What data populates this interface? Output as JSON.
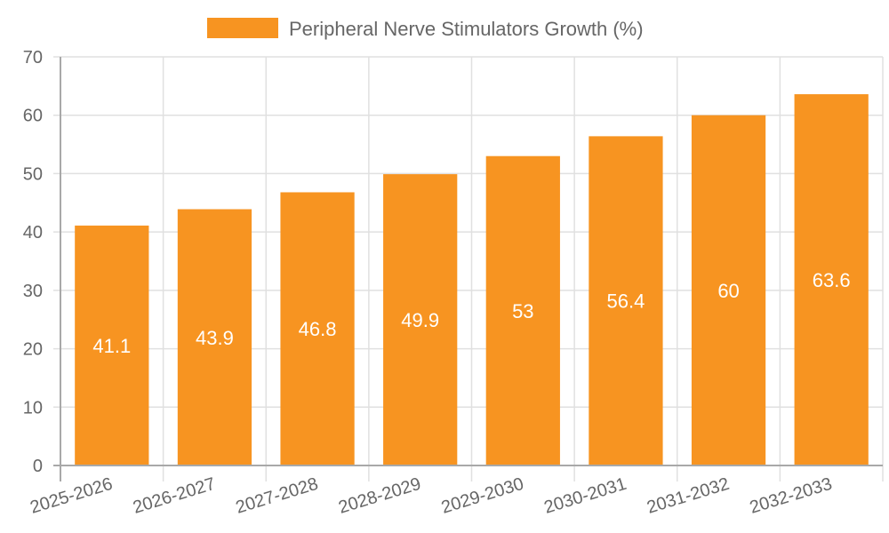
{
  "chart_data": {
    "type": "bar",
    "title": "",
    "xlabel": "",
    "ylabel": "",
    "categories": [
      "2025-2026",
      "2026-2027",
      "2027-2028",
      "2028-2029",
      "2029-2030",
      "2030-2031",
      "2031-2032",
      "2032-2033"
    ],
    "series": [
      {
        "name": "Peripheral Nerve Stimulators Growth (%)",
        "values": [
          41.1,
          43.9,
          46.8,
          49.9,
          53,
          56.4,
          60,
          63.6
        ],
        "color": "#f79421"
      }
    ],
    "ylim": [
      0,
      70
    ],
    "yticks": [
      0,
      10,
      20,
      30,
      40,
      50,
      60,
      70
    ],
    "grid": true,
    "legend_position": "top",
    "data_labels": true
  },
  "colors": {
    "bar": "#f79421",
    "grid": "#e0e0e0",
    "axis": "#a8a8a8",
    "text": "#666666",
    "bar_label": "#ffffff"
  }
}
